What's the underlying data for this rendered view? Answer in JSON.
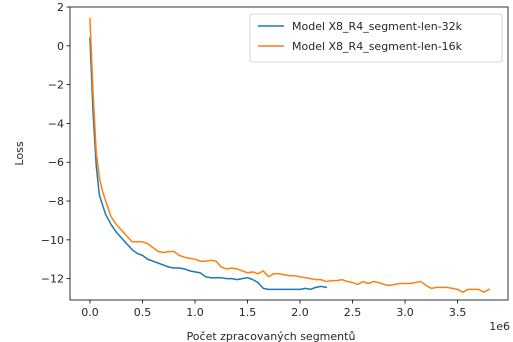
{
  "chart_data": {
    "type": "line",
    "xlabel": "Počet zpracovaných segmentů",
    "ylabel": "Loss",
    "x_offset_label": "1e6",
    "xlim": [
      -0.19,
      3.98
    ],
    "ylim": [
      -13.1,
      2.0
    ],
    "xticks": [
      0.0,
      0.5,
      1.0,
      1.5,
      2.0,
      2.5,
      3.0,
      3.5
    ],
    "xtick_labels": [
      "0.0",
      "0.5",
      "1.0",
      "1.5",
      "2.0",
      "2.5",
      "3.0",
      "3.5"
    ],
    "yticks": [
      2,
      0,
      -2,
      -4,
      -6,
      -8,
      -10,
      -12
    ],
    "ytick_labels": [
      "2",
      "0",
      "−2",
      "−4",
      "−6",
      "−8",
      "−10",
      "−12"
    ],
    "legend_position": "top-right",
    "grid": false,
    "series": [
      {
        "name": "Model X8_R4_segment-len-32k",
        "color": "#1f77b4",
        "x": [
          0.0,
          0.03,
          0.06,
          0.09,
          0.12,
          0.15,
          0.2,
          0.25,
          0.3,
          0.35,
          0.4,
          0.45,
          0.5,
          0.55,
          0.6,
          0.65,
          0.7,
          0.75,
          0.8,
          0.85,
          0.9,
          0.95,
          1.0,
          1.05,
          1.1,
          1.15,
          1.2,
          1.25,
          1.3,
          1.35,
          1.4,
          1.45,
          1.5,
          1.55,
          1.6,
          1.65,
          1.7,
          1.75,
          1.8,
          1.85,
          1.9,
          1.95,
          2.0,
          2.05,
          2.1,
          2.15,
          2.2,
          2.25
        ],
        "y": [
          0.4,
          -3.5,
          -6.2,
          -7.7,
          -8.2,
          -8.7,
          -9.2,
          -9.6,
          -9.9,
          -10.2,
          -10.5,
          -10.7,
          -10.8,
          -11.0,
          -11.1,
          -11.2,
          -11.3,
          -11.4,
          -11.45,
          -11.45,
          -11.5,
          -11.6,
          -11.65,
          -11.7,
          -11.9,
          -11.95,
          -11.95,
          -11.95,
          -12.0,
          -12.0,
          -12.05,
          -12.0,
          -11.95,
          -12.05,
          -12.2,
          -12.5,
          -12.55,
          -12.55,
          -12.55,
          -12.55,
          -12.55,
          -12.55,
          -12.55,
          -12.5,
          -12.55,
          -12.45,
          -12.4,
          -12.45
        ]
      },
      {
        "name": "Model X8_R4_segment-len-16k",
        "color": "#ff7f0e",
        "x": [
          0.0,
          0.03,
          0.06,
          0.09,
          0.12,
          0.15,
          0.2,
          0.25,
          0.3,
          0.35,
          0.4,
          0.45,
          0.5,
          0.55,
          0.6,
          0.65,
          0.7,
          0.75,
          0.8,
          0.85,
          0.9,
          0.95,
          1.0,
          1.05,
          1.1,
          1.15,
          1.2,
          1.25,
          1.3,
          1.35,
          1.4,
          1.45,
          1.5,
          1.55,
          1.6,
          1.65,
          1.7,
          1.75,
          1.8,
          1.85,
          1.9,
          1.95,
          2.0,
          2.05,
          2.1,
          2.15,
          2.2,
          2.25,
          2.3,
          2.35,
          2.4,
          2.45,
          2.5,
          2.55,
          2.6,
          2.65,
          2.7,
          2.75,
          2.8,
          2.85,
          2.9,
          2.95,
          3.0,
          3.05,
          3.1,
          3.15,
          3.2,
          3.25,
          3.3,
          3.35,
          3.4,
          3.45,
          3.5,
          3.55,
          3.6,
          3.65,
          3.7,
          3.75,
          3.8
        ],
        "y": [
          1.4,
          -2.5,
          -5.5,
          -6.8,
          -7.5,
          -8.0,
          -8.8,
          -9.2,
          -9.5,
          -9.8,
          -10.1,
          -10.1,
          -10.1,
          -10.2,
          -10.4,
          -10.6,
          -10.65,
          -10.6,
          -10.6,
          -10.8,
          -10.9,
          -10.95,
          -11.0,
          -11.1,
          -11.1,
          -11.05,
          -11.1,
          -11.4,
          -11.5,
          -11.45,
          -11.5,
          -11.6,
          -11.7,
          -11.65,
          -11.75,
          -11.6,
          -11.9,
          -11.75,
          -11.75,
          -11.8,
          -11.85,
          -11.85,
          -11.9,
          -11.95,
          -12.0,
          -12.05,
          -12.05,
          -12.15,
          -12.1,
          -12.1,
          -12.05,
          -12.15,
          -12.2,
          -12.3,
          -12.15,
          -12.25,
          -12.15,
          -12.2,
          -12.3,
          -12.35,
          -12.3,
          -12.25,
          -12.25,
          -12.25,
          -12.2,
          -12.15,
          -12.35,
          -12.5,
          -12.45,
          -12.45,
          -12.45,
          -12.5,
          -12.55,
          -12.7,
          -12.55,
          -12.55,
          -12.55,
          -12.7,
          -12.55
        ]
      }
    ]
  }
}
